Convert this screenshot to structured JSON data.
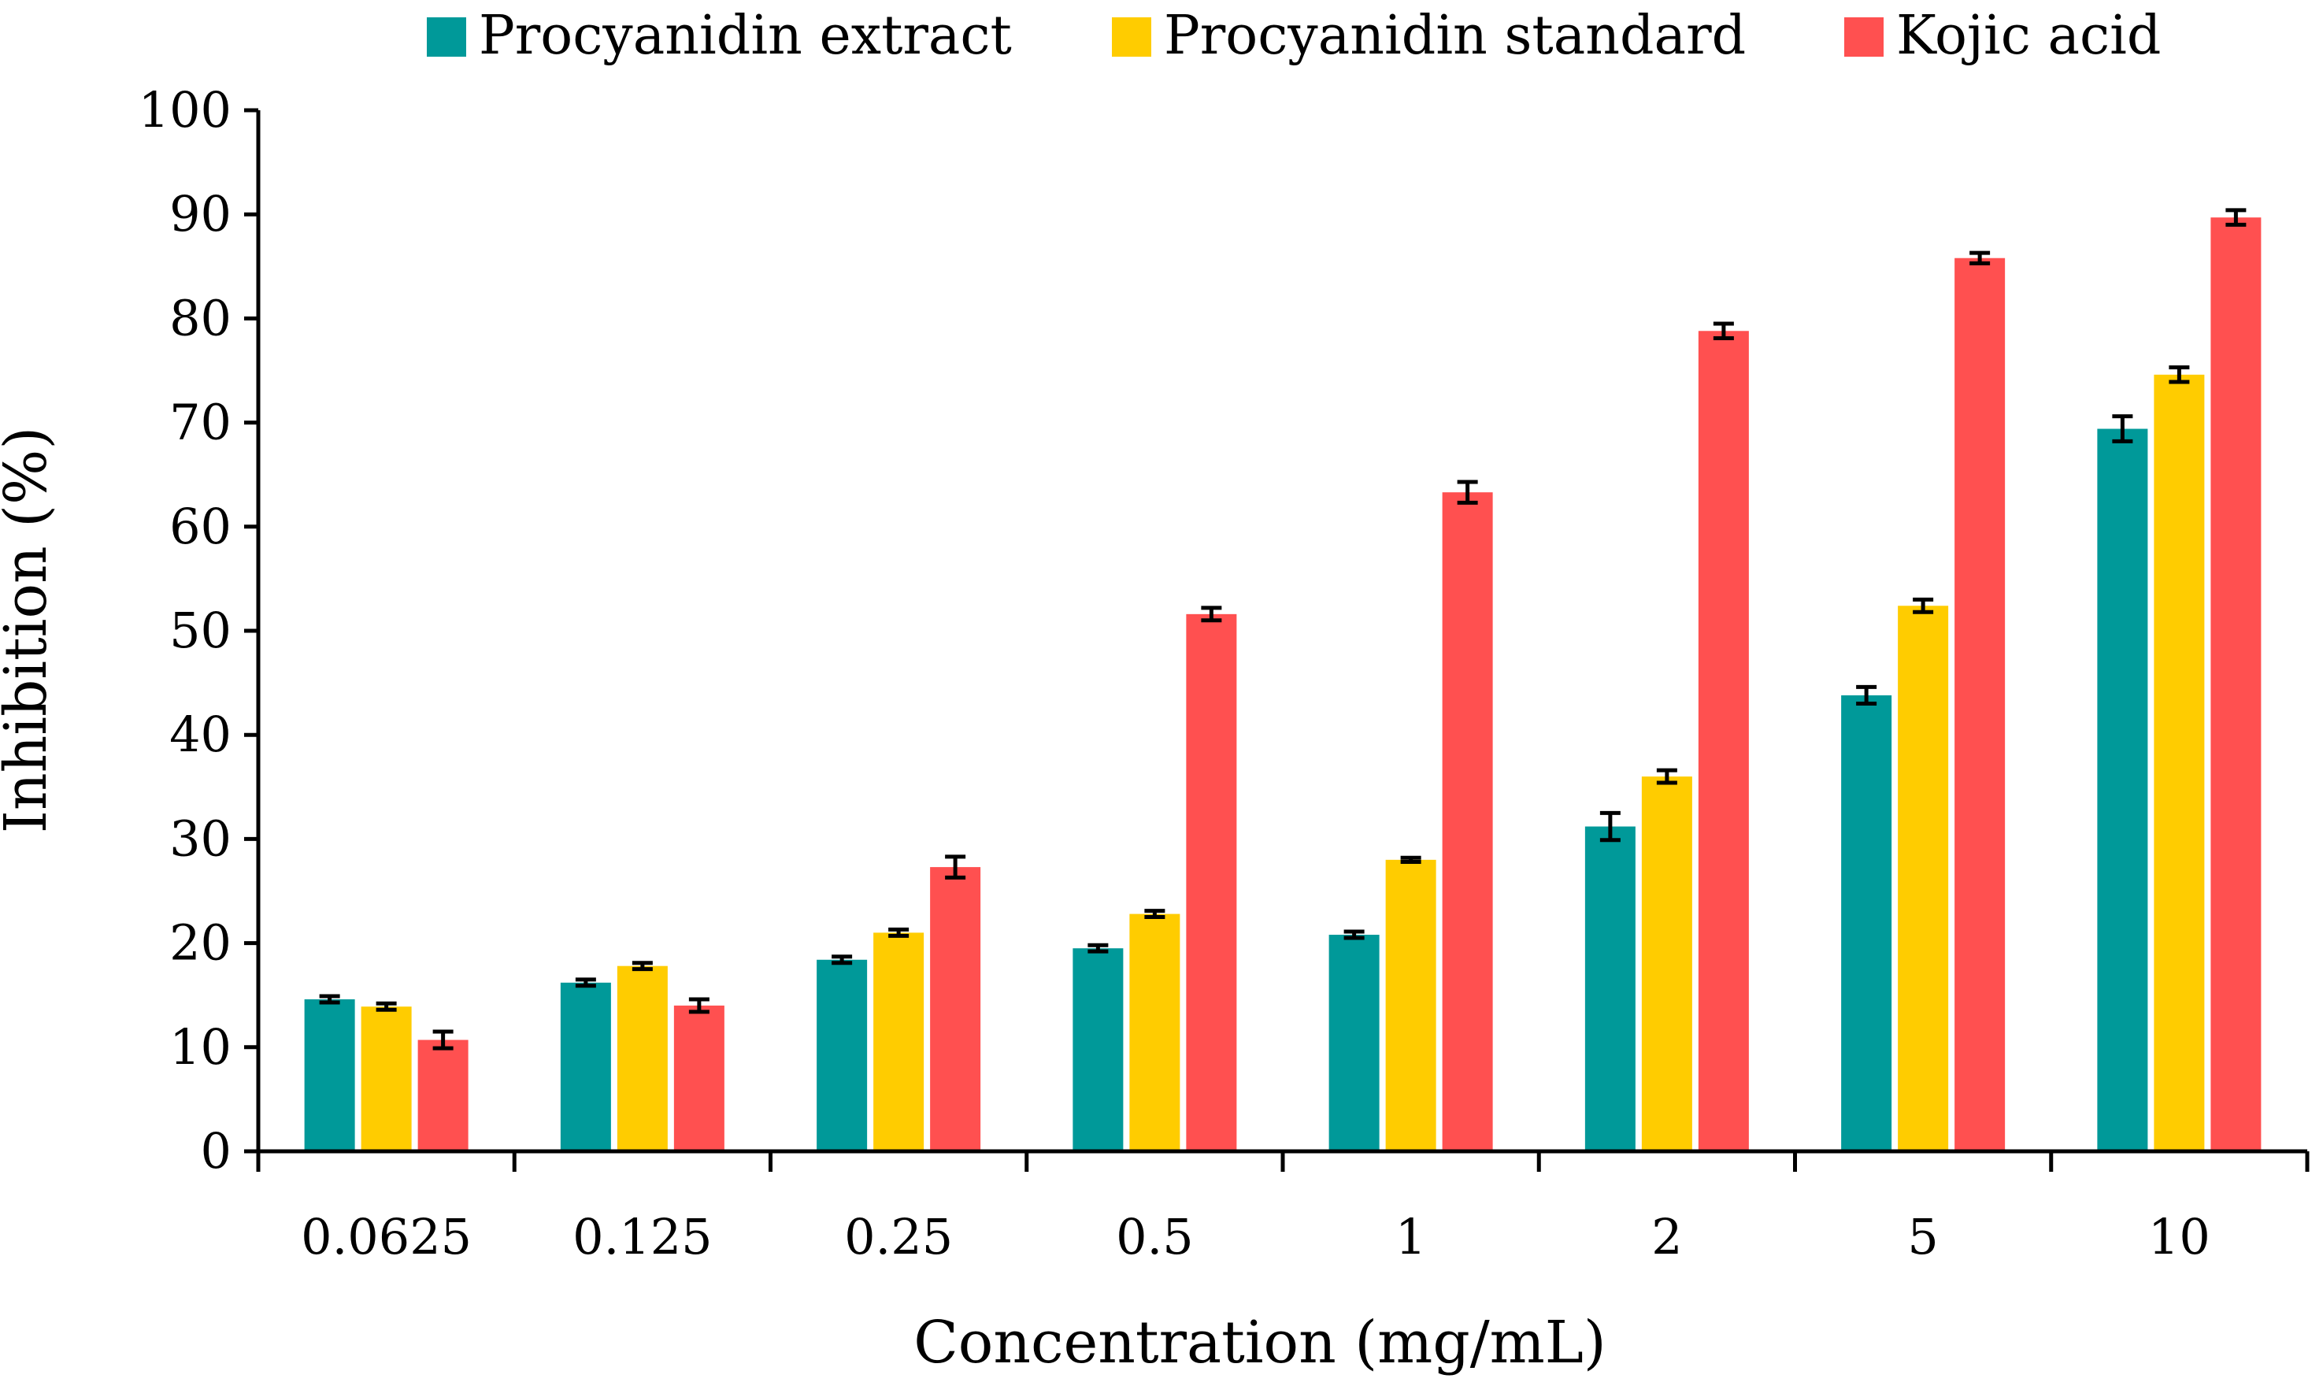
{
  "chart_data": {
    "type": "bar",
    "title": "",
    "xlabel": "Concentration (mg/mL)",
    "ylabel": "Inhibition (%)",
    "ylim": [
      0,
      100
    ],
    "yticks": [
      0,
      10,
      20,
      30,
      40,
      50,
      60,
      70,
      80,
      90,
      100
    ],
    "grid": false,
    "legend_position": "top",
    "categories": [
      "0.0625",
      "0.125",
      "0.25",
      "0.5",
      "1",
      "2",
      "5",
      "10"
    ],
    "series": [
      {
        "name": "Procyanidin extract",
        "color": "#009999",
        "values": [
          14.6,
          16.2,
          18.4,
          19.5,
          20.8,
          31.2,
          43.8,
          69.4
        ],
        "errors": [
          0.3,
          0.3,
          0.3,
          0.3,
          0.3,
          1.3,
          0.8,
          1.2
        ]
      },
      {
        "name": "Procyanidin standard",
        "color": "#FFCC00",
        "values": [
          13.9,
          17.8,
          21.0,
          22.8,
          28.0,
          36.0,
          52.4,
          74.6
        ],
        "errors": [
          0.3,
          0.3,
          0.3,
          0.3,
          0.2,
          0.6,
          0.6,
          0.7
        ]
      },
      {
        "name": "Kojic acid",
        "color": "#FF5050",
        "values": [
          10.7,
          14.0,
          27.3,
          51.6,
          63.3,
          78.8,
          85.8,
          89.7
        ],
        "errors": [
          0.8,
          0.6,
          1.0,
          0.6,
          1.0,
          0.7,
          0.5,
          0.7
        ]
      }
    ]
  }
}
